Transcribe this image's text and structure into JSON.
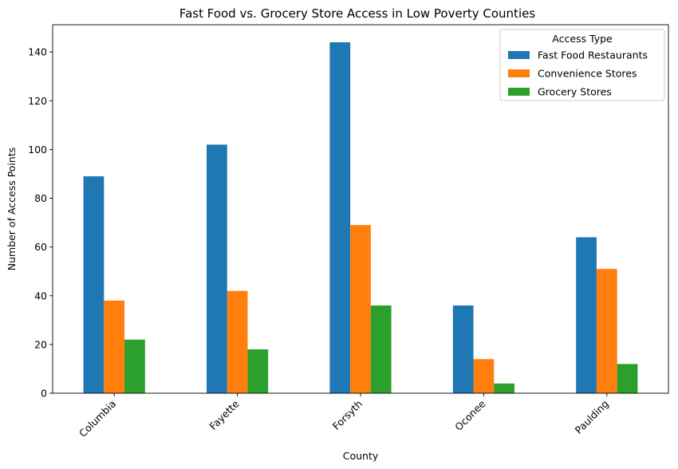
{
  "chart_data": {
    "type": "bar",
    "title": "Fast Food vs. Grocery Store Access in Low Poverty Counties",
    "xlabel": "County",
    "ylabel": "Number of Access Points",
    "categories": [
      "Columbia",
      "Fayette",
      "Forsyth",
      "Oconee",
      "Paulding"
    ],
    "series": [
      {
        "name": "Fast Food Restaurants",
        "color": "#1f77b4",
        "values": [
          89,
          102,
          144,
          36,
          64
        ]
      },
      {
        "name": "Convenience Stores",
        "color": "#ff7f0e",
        "values": [
          38,
          42,
          69,
          14,
          51
        ]
      },
      {
        "name": "Grocery Stores",
        "color": "#2ca02c",
        "values": [
          22,
          18,
          36,
          4,
          12
        ]
      }
    ],
    "ylim": [
      0,
      151.2
    ],
    "yticks": [
      0,
      20,
      40,
      60,
      80,
      100,
      120,
      140
    ],
    "legend": {
      "title": "Access Type",
      "position": "top-right"
    },
    "grid": false
  }
}
